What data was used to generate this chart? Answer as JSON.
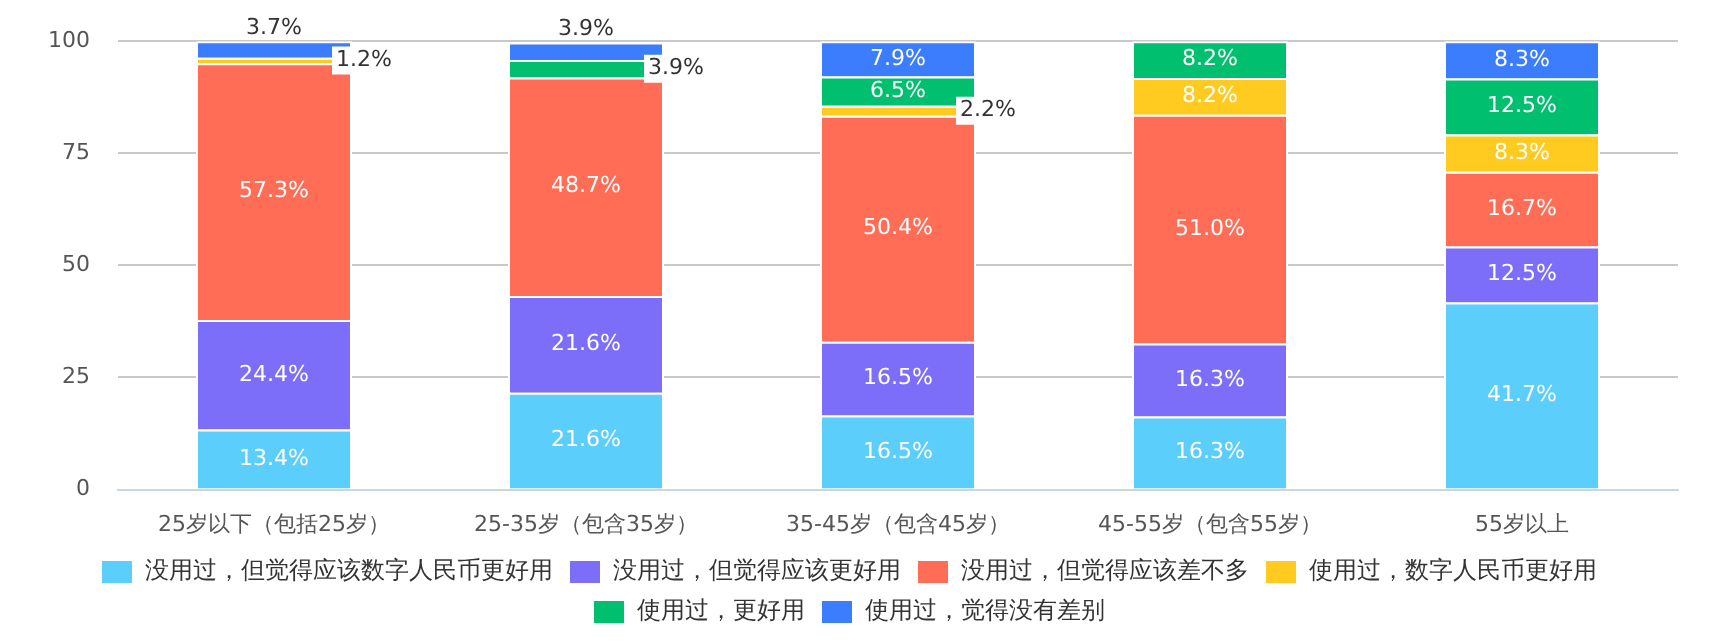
{
  "chart_data": {
    "type": "bar",
    "stacked": true,
    "categories": [
      "25岁以下（包括25岁）",
      "25-35岁（包含35岁）",
      "35-45岁（包含45岁）",
      "45-55岁（包含55岁）",
      "55岁以上"
    ],
    "ylim": [
      0,
      100
    ],
    "yticks": [
      0,
      25,
      50,
      75,
      100
    ],
    "grid": "y",
    "legend": "bottom",
    "series": [
      {
        "name": "没用过，但觉得应该数字人民币更好用",
        "color": "#5bcefc",
        "values": [
          13.4,
          21.6,
          16.5,
          16.3,
          41.7
        ],
        "value_labels": [
          "13.4%",
          "21.6%",
          "16.5%",
          "16.3%",
          "41.7%"
        ]
      },
      {
        "name": "没用过，但觉得应该更好用",
        "color": "#7d6ef9",
        "values": [
          24.4,
          21.6,
          16.5,
          16.3,
          12.5
        ],
        "value_labels": [
          "24.4%",
          "21.6%",
          "16.5%",
          "16.3%",
          "12.5%"
        ]
      },
      {
        "name": "没用过，但觉得应该差不多",
        "color": "#ff6d56",
        "values": [
          57.3,
          48.7,
          50.4,
          51.0,
          16.7
        ],
        "value_labels": [
          "57.3%",
          "48.7%",
          "50.4%",
          "51.0%",
          "16.7%"
        ]
      },
      {
        "name": "使用过，数字人民币更好用",
        "color": "#ffcb21",
        "values": [
          1.2,
          null,
          2.2,
          8.2,
          8.3
        ],
        "value_labels": [
          "1.2%",
          null,
          "2.2%",
          "8.2%",
          "8.3%"
        ]
      },
      {
        "name": "使用过，更好用",
        "color": "#00bf6f",
        "values": [
          null,
          3.9,
          6.5,
          8.2,
          12.5
        ],
        "value_labels": [
          null,
          "3.9%",
          "6.5%",
          "8.2%",
          "12.5%"
        ]
      },
      {
        "name": "使用过，觉得没有差别",
        "color": "#3b7dfc",
        "values": [
          3.7,
          3.9,
          7.9,
          null,
          8.3
        ],
        "value_labels": [
          "3.7%",
          "3.9%",
          "7.9%",
          null,
          "8.3%"
        ]
      }
    ]
  }
}
